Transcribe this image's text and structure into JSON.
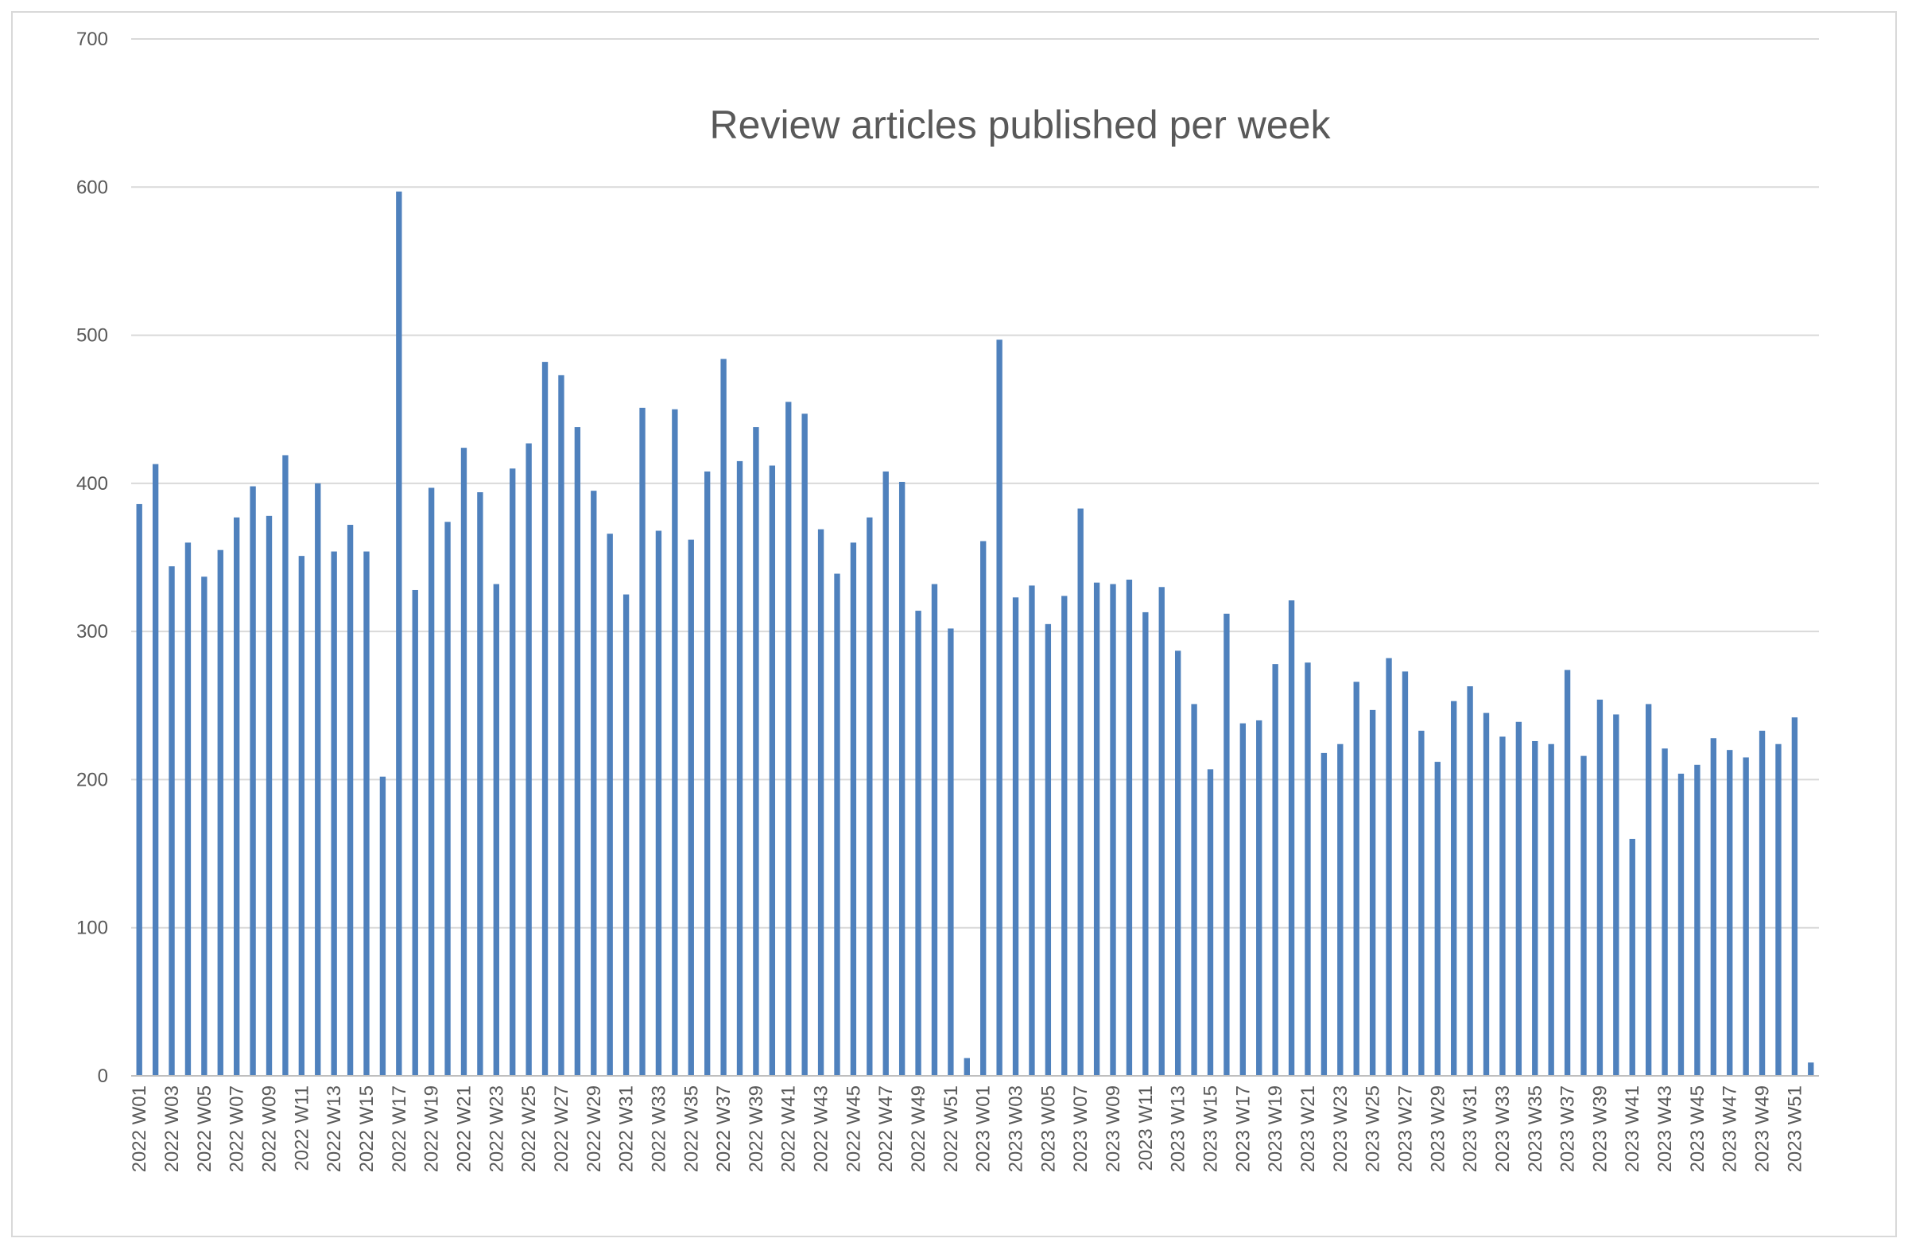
{
  "chart_data": {
    "type": "bar",
    "title": "Review articles published per week",
    "xlabel": "",
    "ylabel": "",
    "ylim": [
      0,
      700
    ],
    "yticks": [
      0,
      100,
      200,
      300,
      400,
      500,
      600,
      700
    ],
    "grid": true,
    "legend": "none",
    "bar_color": "#4f81bd",
    "categories": [
      "2022 W01",
      "2022 W02",
      "2022 W03",
      "2022 W04",
      "2022 W05",
      "2022 W06",
      "2022 W07",
      "2022 W08",
      "2022 W09",
      "2022 W10",
      "2022 W11",
      "2022 W12",
      "2022 W13",
      "2022 W14",
      "2022 W15",
      "2022 W16",
      "2022 W17",
      "2022 W18",
      "2022 W19",
      "2022 W20",
      "2022 W21",
      "2022 W22",
      "2022 W23",
      "2022 W24",
      "2022 W25",
      "2022 W26",
      "2022 W27",
      "2022 W28",
      "2022 W29",
      "2022 W30",
      "2022 W31",
      "2022 W32",
      "2022 W33",
      "2022 W34",
      "2022 W35",
      "2022 W36",
      "2022 W37",
      "2022 W38",
      "2022 W39",
      "2022 W40",
      "2022 W41",
      "2022 W42",
      "2022 W43",
      "2022 W44",
      "2022 W45",
      "2022 W46",
      "2022 W47",
      "2022 W48",
      "2022 W49",
      "2022 W50",
      "2022 W51",
      "2022 W52",
      "2023 W01",
      "2023 W02",
      "2023 W03",
      "2023 W04",
      "2023 W05",
      "2023 W06",
      "2023 W07",
      "2023 W08",
      "2023 W09",
      "2023 W10",
      "2023 W11",
      "2023 W12",
      "2023 W13",
      "2023 W14",
      "2023 W15",
      "2023 W16",
      "2023 W17",
      "2023 W18",
      "2023 W19",
      "2023 W20",
      "2023 W21",
      "2023 W22",
      "2023 W23",
      "2023 W24",
      "2023 W25",
      "2023 W26",
      "2023 W27",
      "2023 W28",
      "2023 W29",
      "2023 W30",
      "2023 W31",
      "2023 W32",
      "2023 W33",
      "2023 W34",
      "2023 W35",
      "2023 W36",
      "2023 W37",
      "2023 W38",
      "2023 W39",
      "2023 W40",
      "2023 W41",
      "2023 W42",
      "2023 W43",
      "2023 W44",
      "2023 W45",
      "2023 W46",
      "2023 W47",
      "2023 W48",
      "2023 W49",
      "2023 W50",
      "2023 W51",
      "2023 W52"
    ],
    "values": [
      386,
      413,
      344,
      360,
      337,
      355,
      377,
      398,
      378,
      419,
      351,
      400,
      354,
      372,
      354,
      202,
      597,
      328,
      397,
      374,
      424,
      394,
      332,
      410,
      427,
      482,
      473,
      438,
      395,
      366,
      325,
      451,
      368,
      450,
      362,
      408,
      484,
      415,
      438,
      412,
      455,
      447,
      369,
      339,
      360,
      377,
      408,
      401,
      314,
      332,
      302,
      12,
      361,
      497,
      323,
      331,
      305,
      324,
      383,
      333,
      332,
      335,
      313,
      330,
      287,
      251,
      207,
      312,
      238,
      240,
      278,
      321,
      279,
      218,
      224,
      266,
      247,
      282,
      273,
      233,
      212,
      253,
      263,
      245,
      229,
      239,
      226,
      224,
      274,
      216,
      254,
      244,
      160,
      251,
      221,
      204,
      210,
      228,
      220,
      215,
      233,
      224,
      242,
      9
    ],
    "tick_labels_shown": [
      "2022 W01",
      "2022 W03",
      "2022 W05",
      "2022 W07",
      "2022 W09",
      "2022 W11",
      "2022 W13",
      "2022 W15",
      "2022 W17",
      "2022 W19",
      "2022 W21",
      "2022 W23",
      "2022 W25",
      "2022 W27",
      "2022 W29",
      "2022 W31",
      "2022 W33",
      "2022 W35",
      "2022 W37",
      "2022 W39",
      "2022 W41",
      "2022 W43",
      "2022 W45",
      "2022 W47",
      "2022 W49",
      "2022 W51",
      "2023 W01",
      "2023 W03",
      "2023 W05",
      "2023 W07",
      "2023 W09",
      "2023 W11",
      "2023 W13",
      "2023 W15",
      "2023 W17",
      "2023 W19",
      "2023 W21",
      "2023 W23",
      "2023 W25",
      "2023 W27",
      "2023 W29",
      "2023 W31",
      "2023 W33",
      "2023 W35",
      "2023 W37",
      "2023 W39",
      "2023 W41",
      "2023 W43",
      "2023 W45",
      "2023 W47",
      "2023 W49",
      "2023 W51"
    ]
  }
}
